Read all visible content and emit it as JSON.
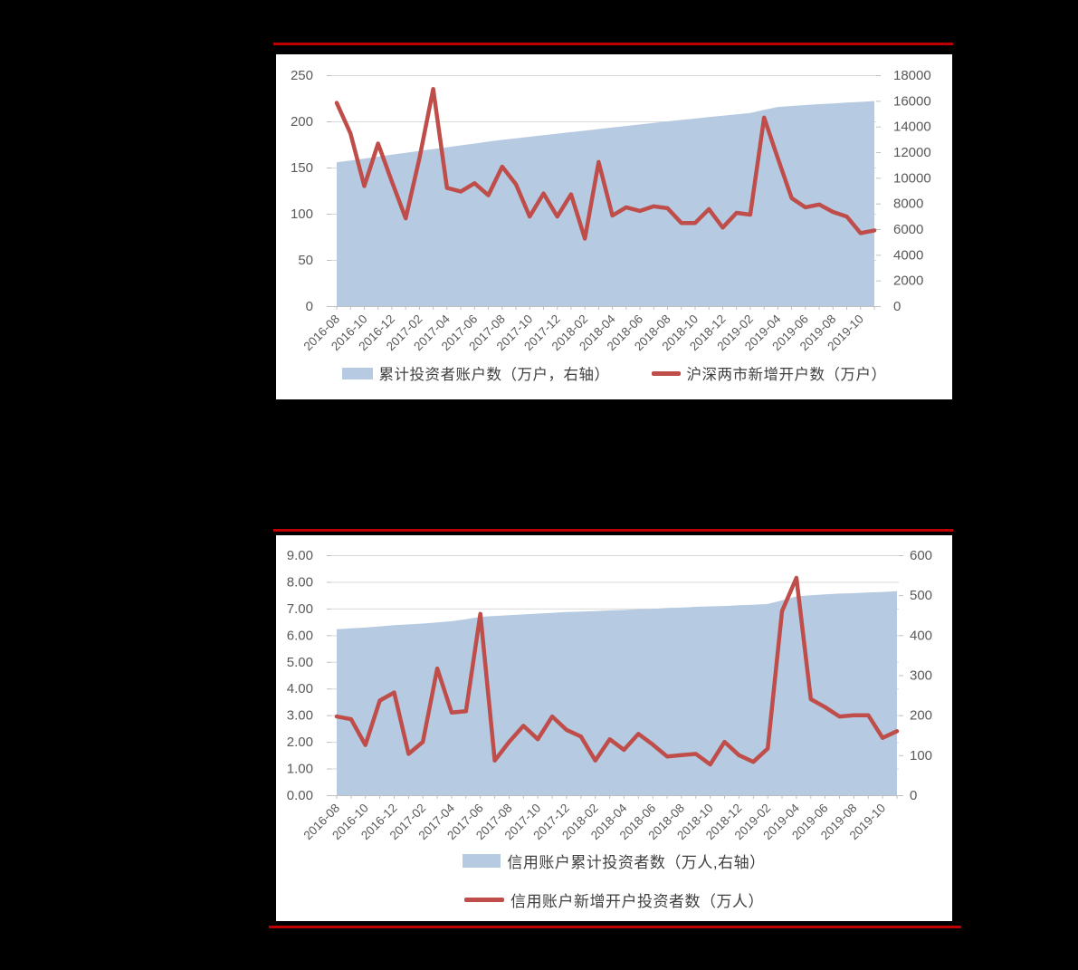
{
  "page": {
    "background_color": "#000000",
    "panel_color": "#FFFFFF",
    "divider_color": "#C00000"
  },
  "chart_data": [
    {
      "type": "area",
      "subtype": "combo-area-line",
      "grid": true,
      "legend_position": "bottom",
      "tick_label_rotation": 45,
      "x": [
        "2016-08",
        "2016-09",
        "2016-10",
        "2016-11",
        "2016-12",
        "2017-01",
        "2017-02",
        "2017-03",
        "2017-04",
        "2017-05",
        "2017-06",
        "2017-07",
        "2017-08",
        "2017-09",
        "2017-10",
        "2017-11",
        "2017-12",
        "2018-01",
        "2018-02",
        "2018-03",
        "2018-04",
        "2018-05",
        "2018-06",
        "2018-07",
        "2018-08",
        "2018-09",
        "2018-10",
        "2018-11",
        "2018-12",
        "2019-01",
        "2019-02",
        "2019-03",
        "2019-04",
        "2019-05",
        "2019-06",
        "2019-07",
        "2019-08",
        "2019-09",
        "2019-10",
        "2019-11"
      ],
      "x_tick_labels": [
        "2016-08",
        "2016-10",
        "2016-12",
        "2017-02",
        "2017-04",
        "2017-06",
        "2017-08",
        "2017-10",
        "2017-12",
        "2018-02",
        "2018-04",
        "2018-06",
        "2018-08",
        "2018-10",
        "2018-12",
        "2019-02",
        "2019-04",
        "2019-06",
        "2019-08",
        "2019-10"
      ],
      "left_axis": {
        "min": 0,
        "max": 250,
        "tick_labels": [
          "250",
          "200",
          "150",
          "100",
          "50",
          "0"
        ]
      },
      "right_axis": {
        "min": 0,
        "max": 18000,
        "tick_labels": [
          "18000",
          "16000",
          "14000",
          "12000",
          "10000",
          "8000",
          "6000",
          "4000",
          "2000",
          "0"
        ]
      },
      "series": [
        {
          "name": "累计投资者账户数（万户，右轴）",
          "kind": "area",
          "axis": "right",
          "color": "#B6CAE2",
          "values": [
            11200,
            11350,
            11500,
            11650,
            11800,
            11950,
            12100,
            12240,
            12380,
            12530,
            12670,
            12820,
            12960,
            13080,
            13200,
            13320,
            13440,
            13560,
            13680,
            13800,
            13920,
            14040,
            14160,
            14280,
            14400,
            14510,
            14620,
            14730,
            14840,
            14950,
            15060,
            15300,
            15520,
            15600,
            15670,
            15740,
            15800,
            15860,
            15920,
            15990
          ]
        },
        {
          "name": "沪深两市新增开户数（万户）",
          "kind": "line",
          "axis": "left",
          "color": "#BF4D49",
          "values": [
            220,
            187,
            130,
            176,
            135,
            95,
            160,
            235,
            128,
            124,
            133,
            120,
            151,
            132,
            97,
            122,
            97,
            121,
            73,
            156,
            98,
            107,
            103,
            108,
            106,
            90,
            90,
            105,
            85,
            101,
            99,
            204,
            160,
            117,
            107,
            110,
            102,
            97,
            79,
            82
          ]
        }
      ]
    },
    {
      "type": "area",
      "subtype": "combo-area-line",
      "grid": true,
      "legend_position": "bottom",
      "tick_label_rotation": 45,
      "x": [
        "2016-08",
        "2016-09",
        "2016-10",
        "2016-11",
        "2016-12",
        "2017-01",
        "2017-02",
        "2017-03",
        "2017-04",
        "2017-05",
        "2017-06",
        "2017-07",
        "2017-08",
        "2017-09",
        "2017-10",
        "2017-11",
        "2017-12",
        "2018-01",
        "2018-02",
        "2018-03",
        "2018-04",
        "2018-05",
        "2018-06",
        "2018-07",
        "2018-08",
        "2018-09",
        "2018-10",
        "2018-11",
        "2018-12",
        "2019-01",
        "2019-02",
        "2019-03",
        "2019-04",
        "2019-05",
        "2019-06",
        "2019-07",
        "2019-08",
        "2019-09",
        "2019-10",
        "2019-11"
      ],
      "x_tick_labels": [
        "2016-08",
        "2016-10",
        "2016-12",
        "2017-02",
        "2017-04",
        "2017-06",
        "2017-08",
        "2017-10",
        "2017-12",
        "2018-02",
        "2018-04",
        "2018-06",
        "2018-08",
        "2018-10",
        "2018-12",
        "2019-02",
        "2019-04",
        "2019-06",
        "2019-08",
        "2019-10"
      ],
      "left_axis": {
        "min": 0,
        "max": 9,
        "tick_labels": [
          "9.00",
          "8.00",
          "7.00",
          "6.00",
          "5.00",
          "4.00",
          "3.00",
          "2.00",
          "1.00",
          "0.00"
        ]
      },
      "right_axis": {
        "min": 0,
        "max": 600,
        "tick_labels": [
          "600",
          "500",
          "400",
          "300",
          "200",
          "100",
          "0"
        ]
      },
      "series": [
        {
          "name": "信用账户累计投资者数（万人,右轴）",
          "kind": "area",
          "axis": "right",
          "color": "#B6CAE2",
          "values": [
            415,
            417,
            419,
            422,
            425,
            427,
            429,
            432,
            435,
            440,
            446,
            448,
            450,
            452,
            454,
            456,
            458,
            459,
            460,
            462,
            463,
            465,
            466,
            468,
            469,
            471,
            472,
            473,
            475,
            476,
            478,
            487,
            497,
            500,
            502,
            504,
            505,
            507,
            508,
            510
          ]
        },
        {
          "name": "信用账户新增开户投资者数（万人）",
          "kind": "line",
          "axis": "left",
          "color": "#BF4D49",
          "values": [
            2.95,
            2.85,
            1.88,
            3.55,
            3.85,
            1.55,
            2.0,
            4.75,
            3.1,
            3.15,
            6.8,
            1.3,
            2.0,
            2.6,
            2.1,
            2.95,
            2.45,
            2.2,
            1.3,
            2.1,
            1.7,
            2.3,
            1.9,
            1.45,
            1.5,
            1.55,
            1.15,
            2.0,
            1.5,
            1.25,
            1.75,
            6.9,
            8.15,
            3.6,
            3.3,
            2.95,
            3.0,
            3.0,
            2.15,
            2.4
          ]
        }
      ]
    }
  ]
}
